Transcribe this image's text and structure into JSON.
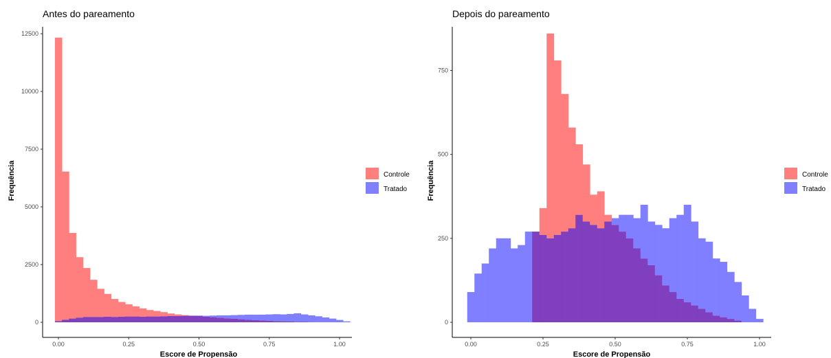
{
  "chart_data": [
    {
      "type": "bar",
      "title": "Antes do pareamento",
      "xlabel": "Escore de Propensão",
      "ylabel": "Frequência",
      "xlim": [
        -0.03,
        1.03
      ],
      "ylim": [
        0,
        12800
      ],
      "x_ticks": [
        "0.00",
        "0.25",
        "0.50",
        "0.75",
        "1.00"
      ],
      "y_ticks": [
        "0",
        "2500",
        "5000",
        "7500",
        "10000",
        "12500"
      ],
      "bin_width": 0.025,
      "bin_start": -0.0125,
      "overlap_color": "#7f3fbf",
      "legend_position": "right",
      "series": [
        {
          "name": "Controle",
          "color": "#ff7f7f",
          "values": [
            12330,
            6530,
            3870,
            2820,
            2350,
            1840,
            1450,
            1230,
            1010,
            880,
            780,
            690,
            600,
            530,
            490,
            440,
            380,
            340,
            310,
            290,
            270,
            240,
            220,
            200,
            170,
            150,
            130,
            110,
            90,
            80,
            60,
            50,
            40,
            30,
            20,
            15,
            10,
            5,
            3,
            0
          ]
        },
        {
          "name": "Tratado",
          "color": "#7f7fff",
          "values": [
            50,
            110,
            160,
            200,
            230,
            230,
            230,
            240,
            230,
            240,
            250,
            250,
            240,
            250,
            250,
            260,
            270,
            270,
            280,
            280,
            290,
            280,
            290,
            300,
            300,
            310,
            320,
            330,
            330,
            330,
            340,
            350,
            340,
            360,
            390,
            340,
            300,
            260,
            210,
            160,
            100,
            40
          ]
        }
      ]
    },
    {
      "type": "bar",
      "title": "Depois do pareamento",
      "xlabel": "Escore de Propensão",
      "ylabel": "Frequência",
      "xlim": [
        -0.03,
        1.03
      ],
      "ylim": [
        0,
        880
      ],
      "x_ticks": [
        "0.00",
        "0.25",
        "0.50",
        "0.75",
        "1.00"
      ],
      "y_ticks": [
        "0",
        "250",
        "500",
        "750"
      ],
      "bin_width": 0.025,
      "bin_start": -0.0125,
      "overlap_color": "#7f3fbf",
      "legend_position": "right",
      "series": [
        {
          "name": "Controle",
          "color": "#ff7f7f",
          "values": [
            0,
            0,
            0,
            0,
            0,
            0,
            0,
            0,
            0,
            270,
            340,
            860,
            780,
            680,
            580,
            530,
            470,
            380,
            390,
            320,
            290,
            270,
            250,
            220,
            190,
            170,
            140,
            110,
            90,
            70,
            60,
            50,
            40,
            30,
            20,
            15,
            10,
            5,
            0,
            0,
            0,
            0
          ]
        },
        {
          "name": "Tratado",
          "color": "#7f7fff",
          "values": [
            90,
            145,
            175,
            220,
            250,
            250,
            220,
            230,
            270,
            270,
            260,
            250,
            260,
            270,
            280,
            320,
            300,
            290,
            280,
            300,
            310,
            320,
            320,
            310,
            350,
            300,
            290,
            280,
            310,
            320,
            350,
            300,
            250,
            240,
            190,
            180,
            150,
            120,
            80,
            40,
            10,
            0
          ]
        }
      ]
    }
  ]
}
